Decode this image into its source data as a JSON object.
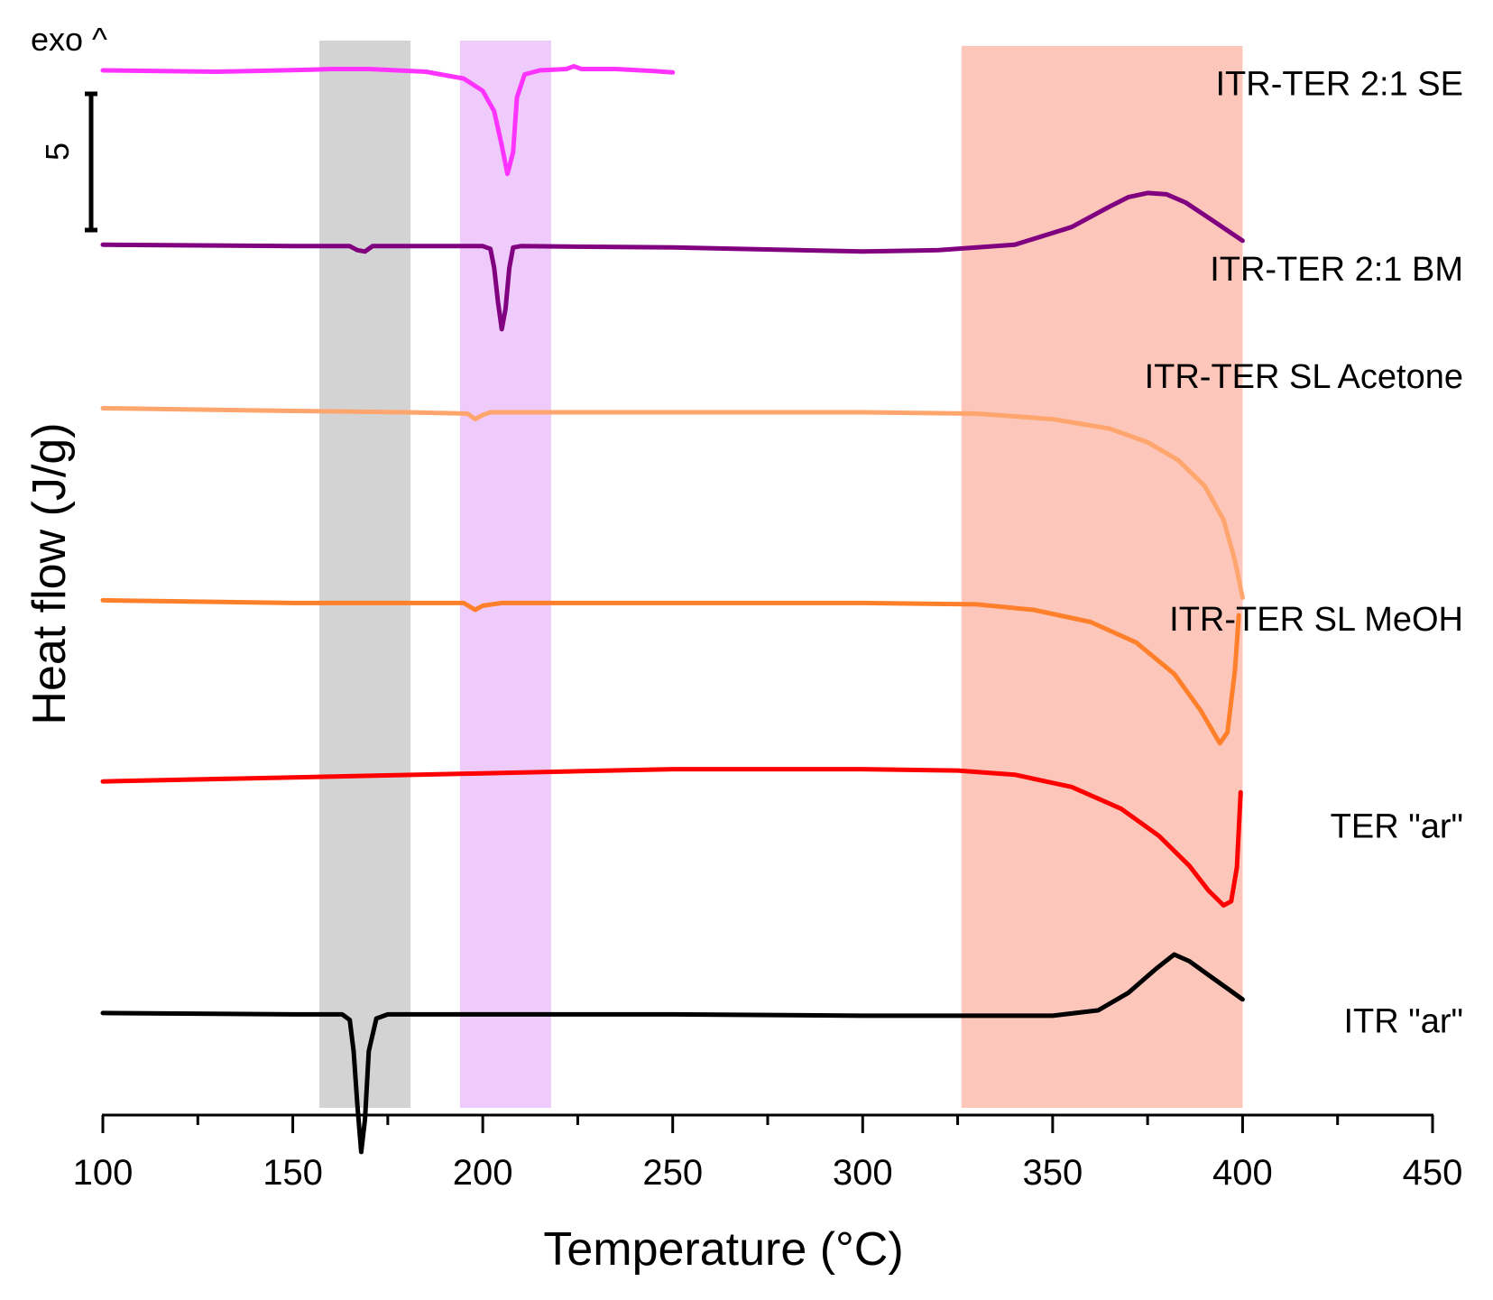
{
  "chart_data": {
    "type": "line",
    "title": "",
    "xlabel": "Temperature (°C)",
    "ylabel": "Heat flow (J/g)",
    "xlim": [
      100,
      450
    ],
    "xticks": [
      100,
      150,
      200,
      250,
      300,
      350,
      400,
      450
    ],
    "xtick_labels": [
      "100",
      "150",
      "200",
      "250",
      "300",
      "350",
      "400",
      "450"
    ],
    "exo_label": "exo ^",
    "scale_bar_label": "5",
    "scale_bar_value": 5,
    "grid": false,
    "shaded_regions": [
      {
        "name": "grey-band",
        "x_range": [
          157,
          181
        ],
        "color": "#d3d3d3"
      },
      {
        "name": "violet-band",
        "x_range": [
          194,
          218
        ],
        "color": "#eecbfb"
      },
      {
        "name": "salmon-band",
        "x_range": [
          326,
          400
        ],
        "color": "#fcc6ba"
      }
    ],
    "series": [
      {
        "name": "ITR-TER 2:1 SE",
        "color": "#ff33ff",
        "label_x": 400,
        "label_y": -0.9,
        "points": [
          [
            100,
            0
          ],
          [
            130,
            -0.1
          ],
          [
            155,
            0.05
          ],
          [
            160,
            0.1
          ],
          [
            170,
            0.1
          ],
          [
            185,
            -0.1
          ],
          [
            195,
            -0.6
          ],
          [
            200,
            -1.5
          ],
          [
            203,
            -3
          ],
          [
            205,
            -5.5
          ],
          [
            206.5,
            -7.6
          ],
          [
            208,
            -6
          ],
          [
            209,
            -2
          ],
          [
            211,
            -0.3
          ],
          [
            215,
            0
          ],
          [
            222,
            0.1
          ],
          [
            224,
            0.3
          ],
          [
            226,
            0.1
          ],
          [
            235,
            0.1
          ],
          [
            245,
            -0.05
          ],
          [
            250,
            -0.15
          ]
        ]
      },
      {
        "name": "ITR-TER 2:1 BM",
        "color": "#800080",
        "label_x": 400,
        "label_y": -14.5,
        "points": [
          [
            100,
            -12.8
          ],
          [
            150,
            -12.9
          ],
          [
            165,
            -12.9
          ],
          [
            167,
            -13.2
          ],
          [
            169,
            -13.3
          ],
          [
            171,
            -12.9
          ],
          [
            200,
            -12.9
          ],
          [
            202,
            -13.1
          ],
          [
            203,
            -14.5
          ],
          [
            204,
            -17
          ],
          [
            205,
            -19
          ],
          [
            206,
            -17.5
          ],
          [
            207,
            -14.5
          ],
          [
            208,
            -13
          ],
          [
            210,
            -12.9
          ],
          [
            250,
            -13
          ],
          [
            300,
            -13.3
          ],
          [
            320,
            -13.2
          ],
          [
            340,
            -12.8
          ],
          [
            355,
            -11.5
          ],
          [
            365,
            -10
          ],
          [
            370,
            -9.3
          ],
          [
            375,
            -9
          ],
          [
            380,
            -9.1
          ],
          [
            385,
            -9.7
          ],
          [
            392,
            -11
          ],
          [
            400,
            -12.5
          ]
        ]
      },
      {
        "name": "ITR-TER SL Acetone",
        "color": "#ffa56e",
        "label_x": 400,
        "label_y": -22.4,
        "points": [
          [
            100,
            -24.8
          ],
          [
            150,
            -25
          ],
          [
            180,
            -25.1
          ],
          [
            196,
            -25.2
          ],
          [
            198,
            -25.6
          ],
          [
            200,
            -25.3
          ],
          [
            202,
            -25.1
          ],
          [
            250,
            -25.1
          ],
          [
            300,
            -25.1
          ],
          [
            330,
            -25.2
          ],
          [
            350,
            -25.6
          ],
          [
            365,
            -26.3
          ],
          [
            375,
            -27.3
          ],
          [
            383,
            -28.6
          ],
          [
            390,
            -30.5
          ],
          [
            395,
            -33
          ],
          [
            398,
            -36
          ],
          [
            400,
            -38.7
          ]
        ]
      },
      {
        "name": "ITR-TER SL MeOH",
        "color": "#ff7f2a",
        "label_x": 400,
        "label_y": -40.2,
        "points": [
          [
            100,
            -38.9
          ],
          [
            150,
            -39.1
          ],
          [
            195,
            -39.1
          ],
          [
            198,
            -39.6
          ],
          [
            200,
            -39.3
          ],
          [
            205,
            -39.1
          ],
          [
            250,
            -39.1
          ],
          [
            300,
            -39.1
          ],
          [
            330,
            -39.2
          ],
          [
            345,
            -39.6
          ],
          [
            360,
            -40.5
          ],
          [
            372,
            -42
          ],
          [
            382,
            -44.3
          ],
          [
            389,
            -47
          ],
          [
            394,
            -49.4
          ],
          [
            396,
            -48.6
          ],
          [
            398,
            -44
          ],
          [
            399,
            -40
          ]
        ]
      },
      {
        "name": "TER \"ar\"",
        "color": "#ff0000",
        "label_x": 400,
        "label_y": -55.4,
        "points": [
          [
            100,
            -52.2
          ],
          [
            150,
            -51.9
          ],
          [
            200,
            -51.6
          ],
          [
            250,
            -51.3
          ],
          [
            300,
            -51.3
          ],
          [
            325,
            -51.4
          ],
          [
            340,
            -51.7
          ],
          [
            355,
            -52.6
          ],
          [
            368,
            -54.2
          ],
          [
            378,
            -56.2
          ],
          [
            386,
            -58.4
          ],
          [
            391,
            -60.2
          ],
          [
            395,
            -61.3
          ],
          [
            397,
            -61
          ],
          [
            398.5,
            -58.5
          ],
          [
            399.5,
            -53
          ]
        ]
      },
      {
        "name": "ITR \"ar\"",
        "color": "#000000",
        "label_x": 400,
        "label_y": -69.7,
        "points": [
          [
            100,
            -69.2
          ],
          [
            150,
            -69.3
          ],
          [
            163,
            -69.3
          ],
          [
            165,
            -69.7
          ],
          [
            166,
            -72
          ],
          [
            167,
            -76
          ],
          [
            168,
            -79.4
          ],
          [
            169,
            -77
          ],
          [
            170,
            -72
          ],
          [
            172,
            -69.6
          ],
          [
            175,
            -69.3
          ],
          [
            250,
            -69.3
          ],
          [
            300,
            -69.4
          ],
          [
            350,
            -69.4
          ],
          [
            362,
            -69
          ],
          [
            370,
            -67.7
          ],
          [
            377,
            -66
          ],
          [
            382,
            -64.9
          ],
          [
            386,
            -65.4
          ],
          [
            392,
            -66.6
          ],
          [
            396,
            -67.4
          ],
          [
            400,
            -68.2
          ]
        ]
      }
    ]
  }
}
